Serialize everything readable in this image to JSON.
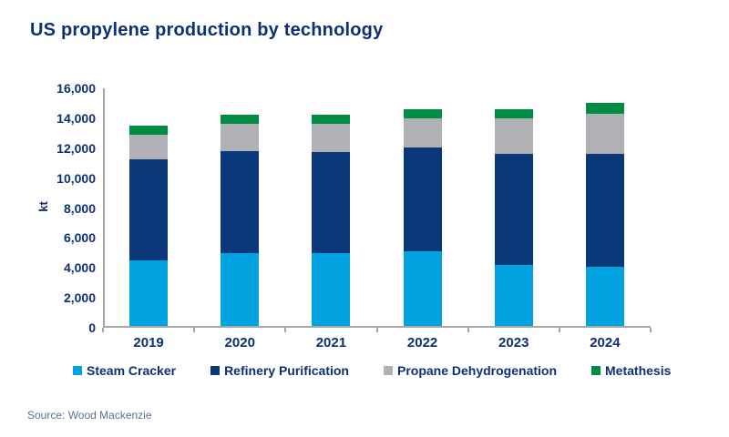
{
  "title": "US propylene production by technology",
  "source": "Source: Wood Mackenzie",
  "colors": {
    "title_text": "#0D3074",
    "axis_line": "#A6A6A6",
    "source_text": "#5C6E96",
    "steam_cracker": "#00A3E0",
    "refinery_purification": "#0B3878",
    "propane_dehydrogenation": "#AFB1B4",
    "metathesis": "#008C44"
  },
  "chart_data": {
    "type": "bar",
    "stacked": true,
    "title": "US propylene production by technology",
    "xlabel": "",
    "ylabel": "kt",
    "ylim": [
      0,
      16000
    ],
    "ytick_step": 2000,
    "grid": false,
    "legend_position": "bottom",
    "categories": [
      "2019",
      "2020",
      "2021",
      "2022",
      "2023",
      "2024"
    ],
    "series": [
      {
        "name": "Steam Cracker",
        "color": "#00A3E0",
        "values": [
          4400,
          4900,
          4900,
          5000,
          4100,
          4000
        ]
      },
      {
        "name": "Refinery Purification",
        "color": "#0B3878",
        "values": [
          6800,
          6900,
          6800,
          7000,
          7500,
          7600
        ]
      },
      {
        "name": "Propane Dehydrogenation",
        "color": "#AFB1B4",
        "values": [
          1700,
          1800,
          1900,
          2000,
          2400,
          2700
        ]
      },
      {
        "name": "Metathesis",
        "color": "#008C44",
        "values": [
          600,
          600,
          600,
          600,
          600,
          700
        ]
      }
    ],
    "totals": [
      13500,
      14200,
      14200,
      14600,
      14600,
      15000
    ]
  }
}
